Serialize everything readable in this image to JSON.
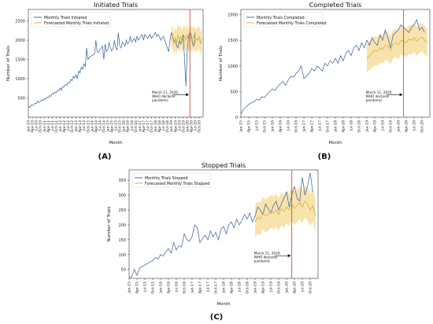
{
  "panels": [
    {
      "id": "A",
      "title": "Initiated Trials",
      "caption": "(A)"
    },
    {
      "id": "B",
      "title": "Completed Trials",
      "caption": "(B)"
    },
    {
      "id": "C",
      "title": "Stopped Trials",
      "caption": "(C)"
    }
  ],
  "colors": {
    "monthly": "#4a6fa5",
    "forecast": "#d8b64a",
    "band": "#f2c24a",
    "who_line": "#c0392b"
  },
  "chart_data": [
    {
      "type": "line",
      "title": "Initiated Trials",
      "xlabel": "Month",
      "ylabel": "Number of Trials",
      "x_ticks": [
        "Jan-10",
        "Apr-10",
        "Jul-10",
        "Oct-10",
        "Jan-11",
        "Apr-11",
        "Jul-11",
        "Oct-11",
        "Jan-12",
        "Apr-12",
        "Jul-12",
        "Oct-12",
        "Jan-13",
        "Apr-13",
        "Jul-13",
        "Oct-13",
        "Jan-14",
        "Apr-14",
        "Jul-14",
        "Oct-14",
        "Jan-15",
        "Apr-15",
        "Jul-15",
        "Oct-15",
        "Jan-16",
        "Apr-16",
        "Jul-16",
        "Oct-16",
        "Jan-17",
        "Apr-17",
        "Jul-17",
        "Oct-17",
        "Jan-18",
        "Apr-18",
        "Jul-18",
        "Oct-18",
        "Jan-19",
        "Apr-19",
        "Jul-19",
        "Oct-19",
        "Jan-20",
        "Apr-20",
        "Jul-20",
        "Oct-20"
      ],
      "y_ticks": [
        500,
        1000,
        1500,
        2000,
        2500
      ],
      "ylim": [
        0,
        2800
      ],
      "legend": "top-left",
      "annotation": "March 11, 2020,\nWHO declares\npandemic",
      "annotation_x": "Mar-20",
      "series": [
        {
          "name": "Monthly Trials Initiated",
          "start": "Jan-10",
          "values": [
            280,
            250,
            320,
            300,
            330,
            360,
            350,
            420,
            380,
            400,
            450,
            430,
            480,
            460,
            520,
            500,
            560,
            540,
            620,
            600,
            650,
            630,
            700,
            680,
            760,
            700,
            800,
            780,
            850,
            830,
            900,
            880,
            980,
            950,
            1060,
            1020,
            1100,
            1000,
            1200,
            1150,
            1300,
            1250,
            1380,
            1320,
            1800,
            1500,
            1550,
            1580,
            1600,
            1620,
            1650,
            2000,
            1700,
            1680,
            1750,
            1800,
            1850,
            1500,
            1900,
            1700,
            1750,
            1950,
            1800,
            1720,
            1780,
            2000,
            1800,
            1750,
            2200,
            1850,
            1800,
            1950,
            1900,
            1850,
            2000,
            1900,
            1950,
            2100,
            1950,
            2000,
            2050,
            1950,
            2100,
            2000,
            2050,
            2100,
            2150,
            2000,
            2150,
            2100,
            2050,
            2100,
            2150,
            2050,
            2100,
            2150,
            2200,
            2100,
            2150,
            2100,
            2000,
            2050,
            2100,
            2000,
            1900,
            1800,
            1700,
            2000,
            2200,
            2100,
            1950,
            2050,
            1850,
            1800,
            2000,
            1900,
            2000,
            2150,
            1500,
            800,
            1700,
            2100,
            2200,
            2150,
            1900,
            1850,
            2200
          ]
        },
        {
          "name": "Forecasted Monthly Trials Initiated",
          "start": "Jan-19",
          "values": [
            2000,
            2100,
            1900,
            2050,
            1950,
            2150,
            2000,
            2100,
            1950,
            2050,
            2100,
            2000,
            2150,
            1950,
            2100,
            2050,
            2000,
            2100,
            1950,
            2050,
            2000,
            2100,
            1900,
            2050
          ],
          "band": 300
        }
      ]
    },
    {
      "type": "line",
      "title": "Completed Trials",
      "xlabel": "Month",
      "ylabel": "Number of Trials",
      "x_ticks": [
        "Jan-15",
        "Apr-15",
        "Jul-15",
        "Oct-15",
        "Jan-16",
        "Apr-16",
        "Jul-16",
        "Oct-16",
        "Jan-17",
        "Apr-17",
        "Jul-17",
        "Oct-17",
        "Jan-18",
        "Apr-18",
        "Jul-18",
        "Oct-18",
        "Jan-19",
        "Apr-19",
        "Jul-19",
        "Oct-19",
        "Jan-20",
        "Apr-20",
        "Jul-20",
        "Oct-20"
      ],
      "y_ticks": [
        0,
        500,
        1000,
        1500,
        2000
      ],
      "ylim": [
        0,
        2100
      ],
      "legend": "top-left",
      "annotation": "March 11, 2020,\nWHO declares\npandemic",
      "annotation_x": "Mar-20",
      "series": [
        {
          "name": "Monthly Trials Completed",
          "start": "Jan-15",
          "values": [
            60,
            150,
            200,
            250,
            280,
            300,
            350,
            330,
            400,
            380,
            450,
            500,
            550,
            520,
            600,
            650,
            700,
            620,
            720,
            800,
            780,
            850,
            900,
            1000,
            750,
            800,
            850,
            950,
            900,
            1000,
            950,
            900,
            1050,
            1000,
            1100,
            1050,
            1150,
            1050,
            1200,
            1100,
            1250,
            1300,
            1200,
            1350,
            1400,
            1300,
            1450,
            1350,
            1500,
            1400,
            1550,
            1450,
            1400,
            1600,
            1500,
            1700,
            1550,
            1350,
            1600,
            1650,
            1700,
            1800,
            1750,
            1700,
            1650,
            1750,
            1800,
            1900,
            1700,
            1750,
            1650
          ]
        },
        {
          "name": "Forecasted Monthly Trials Completed",
          "start": "Jan-19",
          "values": [
            1150,
            1200,
            1250,
            1300,
            1280,
            1350,
            1320,
            1400,
            1380,
            1300,
            1420,
            1450,
            1400,
            1500,
            1480,
            1450,
            1520,
            1500,
            1550,
            1480,
            1530,
            1560,
            1500,
            1450
          ],
          "band": 280
        }
      ]
    },
    {
      "type": "line",
      "title": "Stopped Trials",
      "xlabel": "Month",
      "ylabel": "Number of Trials",
      "x_ticks": [
        "Jan-15",
        "Apr-15",
        "Jul-15",
        "Oct-15",
        "Jan-16",
        "Apr-16",
        "Jul-16",
        "Oct-16",
        "Jan-17",
        "Apr-17",
        "Jul-17",
        "Oct-17",
        "Jan-18",
        "Apr-18",
        "Jul-18",
        "Oct-18",
        "Jan-19",
        "Apr-19",
        "Jul-19",
        "Oct-19",
        "Jan-20",
        "Apr-20",
        "Jul-20",
        "Oct-20"
      ],
      "y_ticks": [
        50,
        100,
        150,
        200,
        250,
        300,
        350
      ],
      "ylim": [
        20,
        385
      ],
      "legend": "top-left",
      "annotation": "March 11, 2020,\nWHO declares\npandemic",
      "annotation_x": "Mar-20",
      "series": [
        {
          "name": "Monthly Trials Stopped",
          "start": "Jan-15",
          "values": [
            22,
            25,
            50,
            30,
            55,
            60,
            65,
            70,
            75,
            80,
            90,
            85,
            100,
            95,
            110,
            120,
            105,
            140,
            115,
            130,
            125,
            170,
            150,
            145,
            160,
            200,
            190,
            140,
            155,
            165,
            150,
            180,
            160,
            175,
            150,
            185,
            195,
            170,
            200,
            210,
            190,
            220,
            200,
            215,
            235,
            220,
            240,
            210,
            230,
            260,
            250,
            235,
            270,
            255,
            240,
            265,
            280,
            250,
            270,
            290,
            310,
            260,
            300,
            330,
            290,
            280,
            360,
            300,
            330,
            375,
            310
          ]
        },
        {
          "name": "Forecasted Monthly Trials Stopped",
          "start": "Jan-19",
          "values": [
            210,
            225,
            220,
            240,
            230,
            235,
            245,
            240,
            250,
            235,
            255,
            245,
            260,
            250,
            270,
            255,
            265,
            275,
            260,
            280,
            270,
            250,
            265,
            230
          ],
          "band": 55
        }
      ]
    }
  ]
}
